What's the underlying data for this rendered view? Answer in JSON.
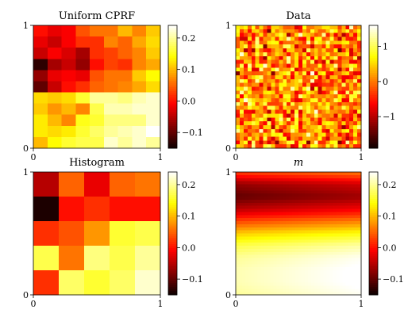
{
  "colormap": {
    "name": "hot",
    "stops": [
      {
        "t": 0.0,
        "color": "#0b0000"
      },
      {
        "t": 0.365,
        "color": "#ff0000"
      },
      {
        "t": 0.746,
        "color": "#ffff00"
      },
      {
        "t": 1.0,
        "color": "#ffffff"
      }
    ]
  },
  "chart_data": [
    {
      "type": "heatmap",
      "title": "Uniform CPRF",
      "title_style": "plain",
      "xlim": [
        0,
        1
      ],
      "ylim": [
        0,
        1
      ],
      "x_ticks": [
        "0",
        "1"
      ],
      "y_ticks": [
        "0",
        "1"
      ],
      "clim": [
        -0.15,
        0.24
      ],
      "colorbar_ticks": [
        {
          "value": 0.2,
          "label": "0.2"
        },
        {
          "value": 0.1,
          "label": "0.1"
        },
        {
          "value": 0.0,
          "label": "0.0"
        },
        {
          "value": -0.1,
          "label": "−0.1"
        }
      ],
      "grid_rows_top_to_bottom": [
        [
          0.0,
          -0.02,
          -0.01,
          0.04,
          0.06,
          0.06,
          0.1,
          0.07,
          0.11
        ],
        [
          -0.02,
          -0.04,
          -0.01,
          0.02,
          0.02,
          0.07,
          0.05,
          0.09,
          0.12
        ],
        [
          -0.04,
          -0.01,
          -0.03,
          -0.06,
          0.02,
          0.03,
          0.05,
          0.07,
          0.11
        ],
        [
          -0.13,
          -0.06,
          -0.04,
          -0.07,
          0.0,
          0.03,
          0.02,
          0.07,
          0.09
        ],
        [
          -0.07,
          -0.02,
          -0.01,
          -0.02,
          0.04,
          0.06,
          0.06,
          0.11,
          0.14
        ],
        [
          -0.1,
          -0.04,
          0.0,
          0.02,
          0.05,
          0.06,
          0.07,
          0.09,
          0.12
        ],
        [
          0.12,
          0.11,
          0.12,
          0.16,
          0.2,
          0.2,
          0.19,
          0.21,
          0.22
        ],
        [
          0.11,
          0.08,
          0.1,
          0.07,
          0.17,
          0.21,
          0.21,
          0.22,
          0.22
        ],
        [
          0.13,
          0.1,
          0.07,
          0.15,
          0.16,
          0.19,
          0.19,
          0.19,
          0.22
        ],
        [
          0.13,
          0.12,
          0.13,
          0.16,
          0.18,
          0.2,
          0.21,
          0.22,
          0.24
        ],
        [
          0.1,
          0.14,
          0.16,
          0.17,
          0.17,
          0.22,
          0.2,
          0.22,
          0.2
        ]
      ]
    },
    {
      "type": "heatmap",
      "title": "Data",
      "title_style": "plain",
      "xlim": [
        0,
        1
      ],
      "ylim": [
        0,
        1
      ],
      "x_ticks": [
        "0",
        "1"
      ],
      "y_ticks": [
        "0",
        "1"
      ],
      "clim": [
        -1.9,
        1.6
      ],
      "colorbar_ticks": [
        {
          "value": 1,
          "label": "1"
        },
        {
          "value": 0,
          "label": "0"
        },
        {
          "value": -1,
          "label": "−1"
        }
      ],
      "noise_grid": {
        "rows": 32,
        "cols": 32,
        "mean": 0.1,
        "spread": 0.55,
        "min": -1.9,
        "max": 1.6
      }
    },
    {
      "type": "heatmap",
      "title": "Histogram",
      "title_style": "plain",
      "xlim": [
        0,
        1
      ],
      "ylim": [
        0,
        1
      ],
      "x_ticks": [
        "0",
        "1"
      ],
      "y_ticks": [
        "0",
        "1"
      ],
      "clim": [
        -0.15,
        0.24
      ],
      "colorbar_ticks": [
        {
          "value": 0.2,
          "label": "0.2"
        },
        {
          "value": 0.1,
          "label": "0.1"
        },
        {
          "value": 0.0,
          "label": "0.0"
        },
        {
          "value": -0.1,
          "label": "−0.1"
        }
      ],
      "grid_rows_top_to_bottom": [
        [
          -0.05,
          0.05,
          -0.02,
          0.05,
          0.06
        ],
        [
          -0.14,
          0.0,
          0.02,
          0.0,
          0.0
        ],
        [
          0.02,
          0.04,
          0.08,
          0.16,
          0.17
        ],
        [
          0.17,
          0.06,
          0.19,
          0.17,
          0.2
        ],
        [
          0.02,
          0.18,
          0.16,
          0.18,
          0.22
        ]
      ]
    },
    {
      "type": "heatmap",
      "title": "m",
      "title_style": "math",
      "xlim": [
        0,
        1
      ],
      "ylim": [
        0,
        1
      ],
      "x_ticks": [
        "0",
        "1"
      ],
      "y_ticks": [
        "0",
        "1"
      ],
      "clim": [
        -0.15,
        0.24
      ],
      "colorbar_ticks": [
        {
          "value": 0.2,
          "label": "0.2"
        },
        {
          "value": 0.1,
          "label": "0.1"
        },
        {
          "value": 0.0,
          "label": "0.0"
        },
        {
          "value": -0.1,
          "label": "−0.1"
        }
      ],
      "smooth_field": {
        "rows": 40,
        "cols": 40,
        "row_profile_top_to_bottom": [
          [
            0.0,
            0.03
          ],
          [
            0.1,
            -0.07
          ],
          [
            0.2,
            -0.1
          ],
          [
            0.3,
            -0.05
          ],
          [
            0.4,
            0.03
          ],
          [
            0.5,
            0.11
          ],
          [
            0.6,
            0.17
          ],
          [
            0.7,
            0.2
          ],
          [
            0.8,
            0.21
          ],
          [
            0.9,
            0.21
          ],
          [
            1.0,
            0.2
          ]
        ],
        "right_shift": 0.035
      }
    }
  ]
}
